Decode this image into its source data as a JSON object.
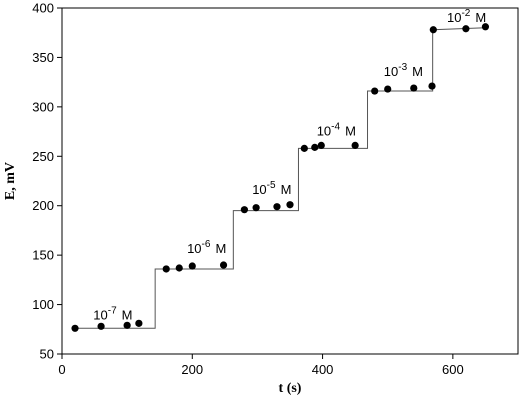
{
  "chart_data": {
    "type": "scatter",
    "xlabel": "t (s)",
    "ylabel": "E, mV",
    "xlim": [
      0,
      700
    ],
    "ylim": [
      50,
      400
    ],
    "xticks": [
      0,
      200,
      400,
      600
    ],
    "yticks": [
      50,
      100,
      150,
      200,
      250,
      300,
      350,
      400
    ],
    "series": [
      {
        "color": "#000000",
        "x": [
          20,
          60,
          100,
          118,
          160,
          180,
          200,
          248,
          280,
          298,
          330,
          350,
          372,
          388,
          398,
          450,
          480,
          500,
          540,
          568,
          570,
          620,
          650
        ],
        "values": [
          76,
          78,
          79,
          81,
          136,
          137,
          139,
          140,
          196,
          198,
          199,
          201,
          258,
          259,
          261,
          261,
          316,
          318,
          319,
          321,
          378,
          379,
          381
        ]
      }
    ],
    "step": {
      "color": "#555555",
      "x": [
        18,
        143,
        143,
        263,
        263,
        363,
        363,
        469,
        469,
        569,
        569,
        650
      ],
      "values": [
        76,
        76,
        136,
        136,
        195,
        195,
        258,
        258,
        316,
        316,
        378,
        380
      ]
    },
    "annotations": [
      {
        "base": "10",
        "exp": "-7",
        "unit": "M",
        "x": 48,
        "y": 85
      },
      {
        "base": "10",
        "exp": "-6",
        "unit": "M",
        "x": 192,
        "y": 152
      },
      {
        "base": "10",
        "exp": "-5",
        "unit": "M",
        "x": 292,
        "y": 212
      },
      {
        "base": "10",
        "exp": "-4",
        "unit": "M",
        "x": 391,
        "y": 271
      },
      {
        "base": "10",
        "exp": "-3",
        "unit": "M",
        "x": 494,
        "y": 331
      },
      {
        "base": "10",
        "exp": "-2",
        "unit": "M",
        "x": 591,
        "y": 386
      }
    ]
  }
}
